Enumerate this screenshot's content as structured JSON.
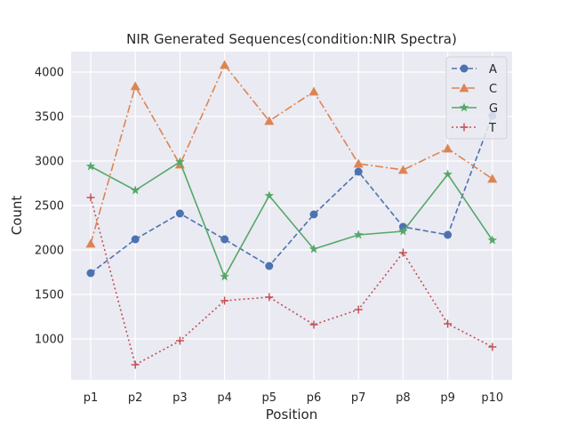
{
  "chart_data": {
    "type": "line",
    "title": "NIR Generated Sequences(condition:NIR Spectra)",
    "xlabel": "Position",
    "ylabel": "Count",
    "categories": [
      "p1",
      "p2",
      "p3",
      "p4",
      "p5",
      "p6",
      "p7",
      "p8",
      "p9",
      "p10"
    ],
    "yticks": [
      1000,
      1500,
      2000,
      2500,
      3000,
      3500,
      4000
    ],
    "ylim": [
      540,
      4230
    ],
    "grid": true,
    "legend_position": "top-right",
    "background_color": "#eaeaf2",
    "series": [
      {
        "name": "A",
        "values": [
          1740,
          2120,
          2410,
          2120,
          1820,
          2400,
          2880,
          2260,
          2170,
          3510
        ],
        "color": "#4c72b0",
        "line_style": "dashed",
        "marker": "circle"
      },
      {
        "name": "C",
        "values": [
          2070,
          3840,
          2960,
          4080,
          3450,
          3780,
          2970,
          2900,
          3140,
          2800
        ],
        "color": "#dd8452",
        "line_style": "dashdot",
        "marker": "triangle"
      },
      {
        "name": "G",
        "values": [
          2940,
          2670,
          2990,
          1700,
          2610,
          2010,
          2170,
          2210,
          2850,
          2110
        ],
        "color": "#55a868",
        "line_style": "solid",
        "marker": "star"
      },
      {
        "name": "T",
        "values": [
          2590,
          710,
          980,
          1430,
          1470,
          1160,
          1330,
          1970,
          1170,
          910
        ],
        "color": "#c44e52",
        "line_style": "dotted",
        "marker": "plus"
      }
    ]
  }
}
